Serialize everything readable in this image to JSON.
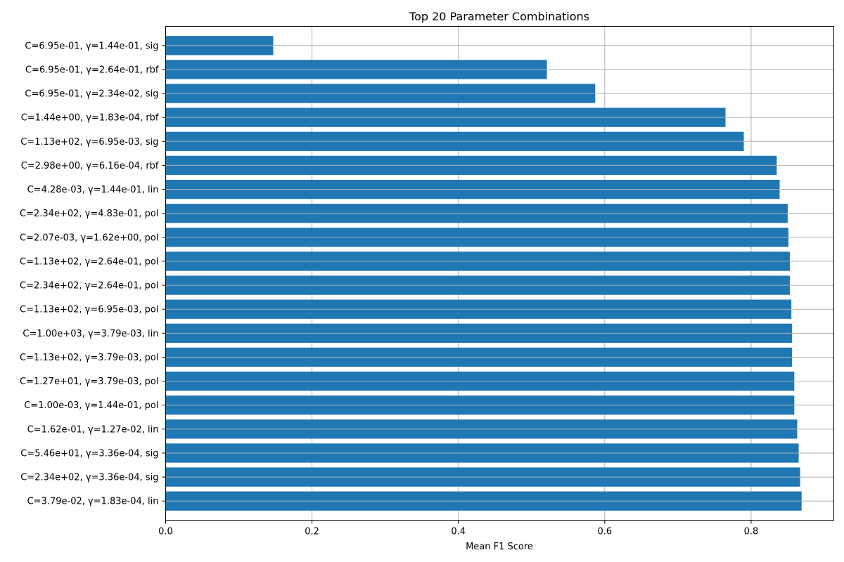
{
  "chart_data": {
    "type": "bar",
    "orientation": "horizontal",
    "title": "Top 20 Parameter Combinations",
    "xlabel": "Mean F1 Score",
    "ylabel": "",
    "xlim": [
      0,
      0.913
    ],
    "x_ticks": [
      "0.0",
      "0.2",
      "0.4",
      "0.6",
      "0.8"
    ],
    "x_tick_values": [
      0,
      0.2,
      0.4,
      0.6,
      0.8
    ],
    "grid": true,
    "bar_color": "#1f77b4",
    "categories": [
      "C=3.79e-02, γ=1.83e-04, lin",
      "C=2.34e+02, γ=3.36e-04, sig",
      "C=5.46e+01, γ=3.36e-04, sig",
      "C=1.62e-01, γ=1.27e-02, lin",
      "C=1.00e-03, γ=1.44e-01, pol",
      "C=1.27e+01, γ=3.79e-03, pol",
      "C=1.13e+02, γ=3.79e-03, pol",
      "C=1.00e+03, γ=3.79e-03, lin",
      "C=1.13e+02, γ=6.95e-03, pol",
      "C=2.34e+02, γ=2.64e-01, pol",
      "C=1.13e+02, γ=2.64e-01, pol",
      "C=2.07e-03, γ=1.62e+00, pol",
      "C=2.34e+02, γ=4.83e-01, pol",
      "C=4.28e-03, γ=1.44e-01, lin",
      "C=2.98e+00, γ=6.16e-04, rbf",
      "C=1.13e+02, γ=6.95e-03, sig",
      "C=1.44e+00, γ=1.83e-04, rbf",
      "C=6.95e-01, γ=2.34e-02, sig",
      "C=6.95e-01, γ=2.64e-01, rbf",
      "C=6.95e-01, γ=1.44e-01, sig"
    ],
    "values": [
      0.869,
      0.867,
      0.865,
      0.863,
      0.859,
      0.859,
      0.856,
      0.856,
      0.855,
      0.853,
      0.853,
      0.851,
      0.85,
      0.839,
      0.835,
      0.79,
      0.765,
      0.587,
      0.521,
      0.147
    ]
  }
}
